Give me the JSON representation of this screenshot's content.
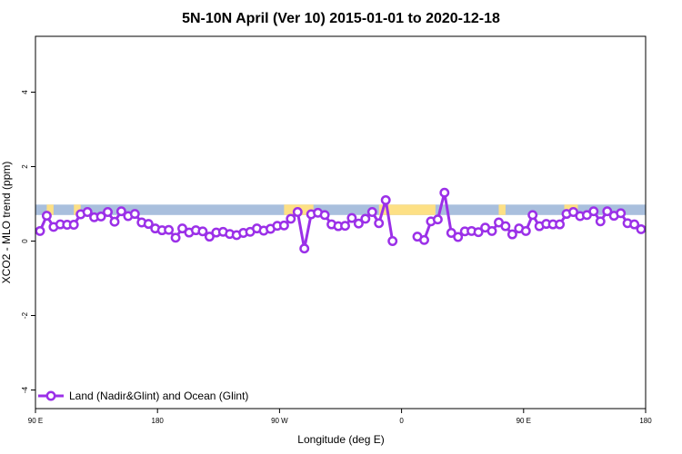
{
  "chart_data": {
    "type": "line",
    "title": "5N-10N April (Ver 10)   2015-01-01 to 2020-12-18",
    "xlabel": "Longitude (deg E)",
    "ylabel": "XCO2 - MLO trend (ppm)",
    "xlim": [
      -90,
      180
    ],
    "ylim": [
      -4.5,
      5.5
    ],
    "x_ticks": [
      {
        "value": -90,
        "label": "90 E"
      },
      {
        "value": -36,
        "label": "180"
      },
      {
        "value": 18,
        "label": "90 W"
      },
      {
        "value": 72,
        "label": "0"
      },
      {
        "value": 126,
        "label": "90 E"
      },
      {
        "value": 180,
        "label": "180"
      }
    ],
    "y_ticks": [
      {
        "value": -4,
        "label": "-4"
      },
      {
        "value": -2,
        "label": "-2"
      },
      {
        "value": 0,
        "label": "0"
      },
      {
        "value": 2,
        "label": "2"
      },
      {
        "value": 4,
        "label": "4"
      }
    ],
    "grid": false,
    "legend_position": "bottom-left",
    "series": [
      {
        "name": "Land (Nadir&Glint) and Ocean (Glint)",
        "color": "#9b30e8",
        "segments": [
          [
            [
              -88,
              0.27
            ],
            [
              -85,
              0.68
            ],
            [
              -82,
              0.38
            ],
            [
              -79,
              0.45
            ],
            [
              -76,
              0.44
            ],
            [
              -73,
              0.44
            ],
            [
              -70,
              0.72
            ],
            [
              -67,
              0.78
            ],
            [
              -64,
              0.64
            ],
            [
              -61,
              0.66
            ],
            [
              -58,
              0.78
            ],
            [
              -55,
              0.52
            ],
            [
              -52,
              0.8
            ],
            [
              -49,
              0.67
            ],
            [
              -46,
              0.73
            ],
            [
              -43,
              0.5
            ],
            [
              -40,
              0.46
            ],
            [
              -37,
              0.34
            ],
            [
              -34,
              0.29
            ],
            [
              -31,
              0.3
            ],
            [
              -28,
              0.09
            ],
            [
              -25,
              0.34
            ],
            [
              -22,
              0.23
            ],
            [
              -19,
              0.29
            ],
            [
              -16,
              0.26
            ],
            [
              -13,
              0.12
            ],
            [
              -10,
              0.23
            ],
            [
              -7,
              0.25
            ],
            [
              -4,
              0.19
            ],
            [
              -1,
              0.16
            ],
            [
              2,
              0.22
            ],
            [
              5,
              0.25
            ],
            [
              8,
              0.34
            ],
            [
              11,
              0.28
            ],
            [
              14,
              0.33
            ],
            [
              17,
              0.41
            ],
            [
              20,
              0.42
            ],
            [
              23,
              0.6
            ],
            [
              26,
              0.78
            ],
            [
              29,
              -0.2
            ],
            [
              32,
              0.72
            ],
            [
              35,
              0.76
            ],
            [
              38,
              0.7
            ],
            [
              41,
              0.45
            ],
            [
              44,
              0.4
            ],
            [
              47,
              0.41
            ],
            [
              50,
              0.62
            ],
            [
              53,
              0.47
            ],
            [
              56,
              0.6
            ],
            [
              59,
              0.78
            ],
            [
              62,
              0.48
            ],
            [
              65,
              1.1
            ],
            [
              68,
              0.0
            ]
          ],
          [
            [
              79,
              0.12
            ],
            [
              82,
              0.03
            ],
            [
              85,
              0.53
            ],
            [
              88,
              0.58
            ],
            [
              91,
              1.3
            ],
            [
              94,
              0.22
            ],
            [
              97,
              0.11
            ],
            [
              100,
              0.26
            ],
            [
              103,
              0.27
            ],
            [
              106,
              0.24
            ],
            [
              109,
              0.36
            ],
            [
              112,
              0.27
            ],
            [
              115,
              0.5
            ],
            [
              118,
              0.4
            ],
            [
              121,
              0.18
            ],
            [
              124,
              0.34
            ],
            [
              127,
              0.27
            ],
            [
              130,
              0.7
            ],
            [
              133,
              0.4
            ],
            [
              136,
              0.46
            ],
            [
              139,
              0.45
            ],
            [
              142,
              0.45
            ],
            [
              145,
              0.73
            ],
            [
              148,
              0.78
            ],
            [
              151,
              0.67
            ],
            [
              154,
              0.7
            ],
            [
              157,
              0.8
            ],
            [
              160,
              0.53
            ],
            [
              163,
              0.8
            ],
            [
              166,
              0.68
            ],
            [
              169,
              0.75
            ],
            [
              172,
              0.48
            ],
            [
              175,
              0.45
            ],
            [
              178,
              0.32
            ]
          ]
        ]
      }
    ],
    "background_band": {
      "y_range": [
        0.7,
        0.98
      ],
      "ocean_color": "#a9bfdd",
      "land_color": "#fde085",
      "land_x_ranges": [
        [
          -85,
          -82
        ],
        [
          -73,
          -70
        ],
        [
          20,
          33
        ],
        [
          62,
          87
        ],
        [
          115,
          118
        ],
        [
          144,
          150
        ]
      ]
    }
  }
}
